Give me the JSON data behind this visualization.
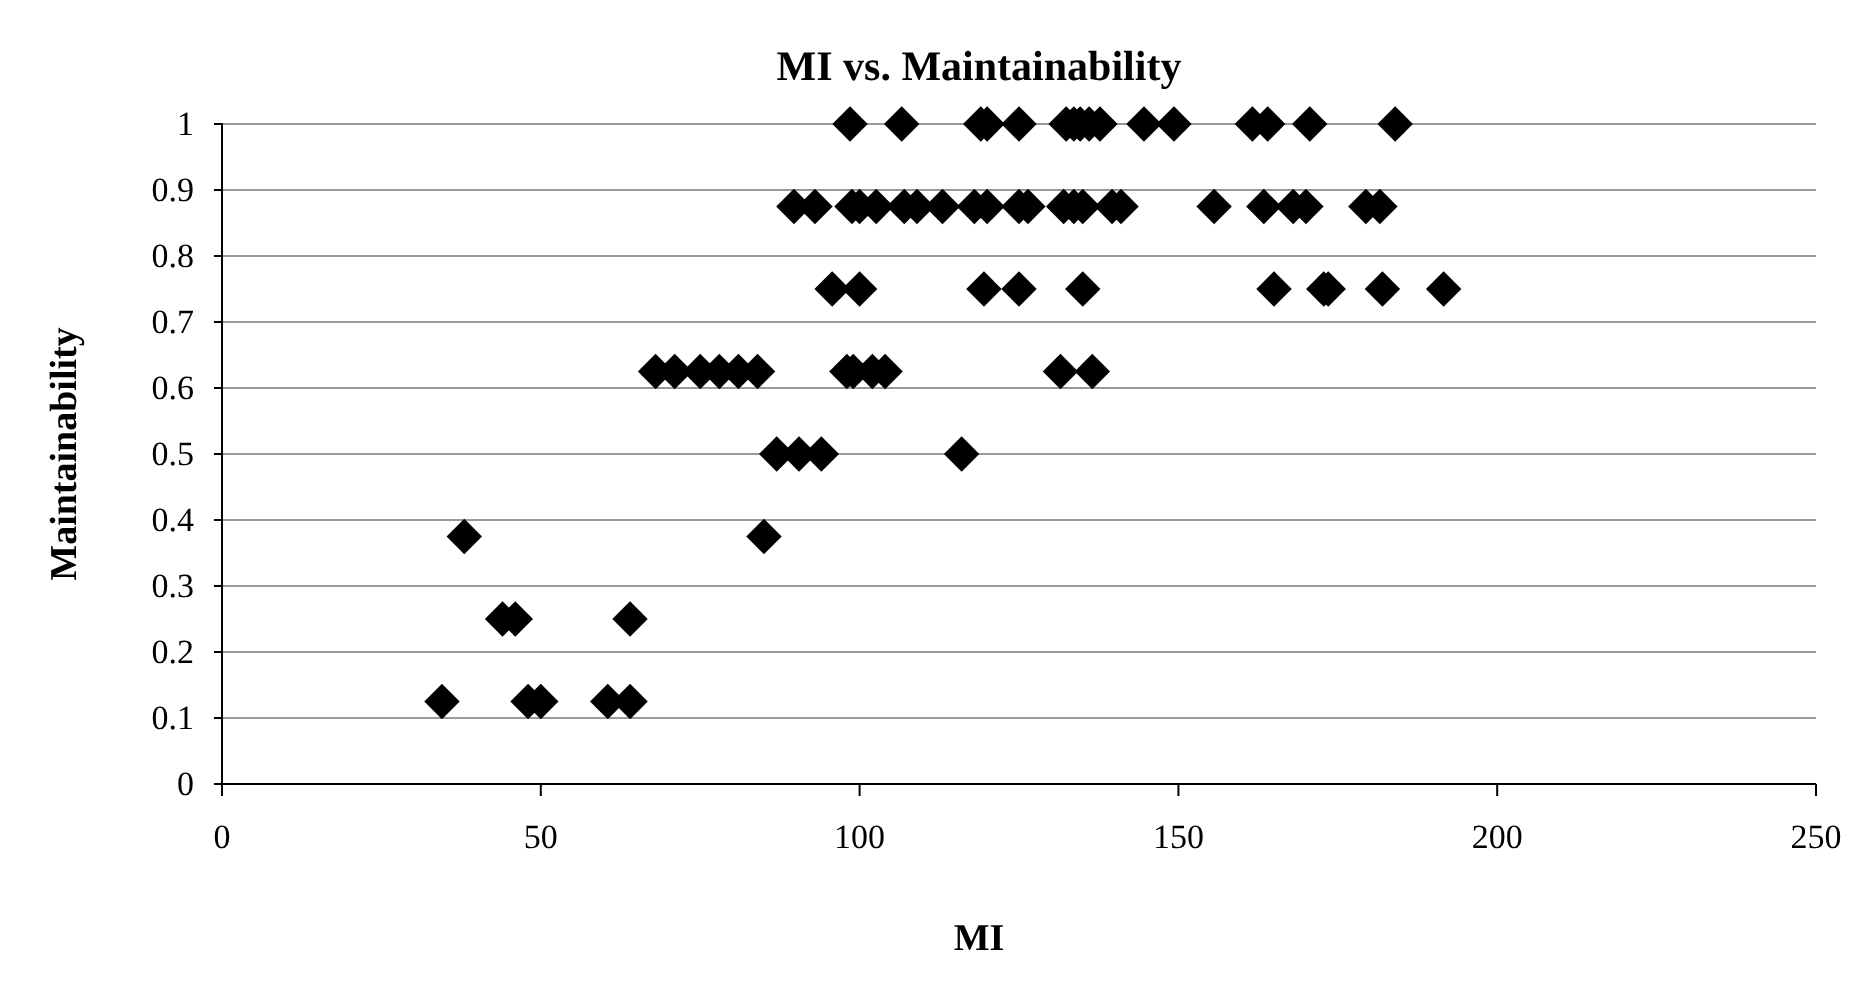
{
  "chart_data": {
    "type": "scatter",
    "title": "MI vs. Maintainability",
    "xlabel": "MI",
    "ylabel": "Maintainability",
    "series": [
      {
        "color": "#000000",
        "x": [
          34.5,
          48,
          50,
          60.5,
          64,
          44,
          46,
          64,
          38,
          85,
          87,
          90.5,
          94,
          116,
          68,
          71,
          75,
          78,
          81,
          84,
          98,
          99,
          102,
          104,
          131.5,
          136.5,
          95.7,
          100,
          119.5,
          125,
          135,
          165,
          172.8,
          173.5,
          182,
          191.6,
          89.7,
          93,
          98.8,
          100,
          102.6,
          107,
          109,
          113,
          118,
          120,
          125,
          126.4,
          132,
          133.6,
          135,
          139.6,
          141,
          155.6,
          163.4,
          168,
          170,
          179.4,
          181.6,
          98.5,
          106.6,
          119,
          120,
          125,
          132.4,
          133.6,
          134.6,
          136,
          137.7,
          144.6,
          149.3,
          161.6,
          164,
          170.6,
          184
        ],
        "values": [
          0.125,
          0.125,
          0.125,
          0.125,
          0.125,
          0.25,
          0.25,
          0.25,
          0.375,
          0.375,
          0.5,
          0.5,
          0.5,
          0.5,
          0.625,
          0.625,
          0.625,
          0.625,
          0.625,
          0.625,
          0.625,
          0.625,
          0.625,
          0.625,
          0.625,
          0.625,
          0.75,
          0.75,
          0.75,
          0.75,
          0.75,
          0.75,
          0.75,
          0.75,
          0.75,
          0.75,
          0.875,
          0.875,
          0.875,
          0.875,
          0.875,
          0.875,
          0.875,
          0.875,
          0.875,
          0.875,
          0.875,
          0.875,
          0.875,
          0.875,
          0.875,
          0.875,
          0.875,
          0.875,
          0.875,
          0.875,
          0.875,
          0.875,
          0.875,
          1,
          1,
          1,
          1,
          1,
          1,
          1,
          1,
          1,
          1,
          1,
          1,
          1,
          1,
          1,
          1
        ]
      }
    ],
    "xlim": [
      0,
      250
    ],
    "xticks": [
      0,
      50,
      100,
      150,
      200,
      250
    ],
    "ylim": [
      0,
      1
    ],
    "yticks": [
      0,
      0.1,
      0.2,
      0.3,
      0.4,
      0.5,
      0.6,
      0.7,
      0.8,
      0.9,
      1
    ],
    "grid": "y",
    "marker": "diamond"
  }
}
